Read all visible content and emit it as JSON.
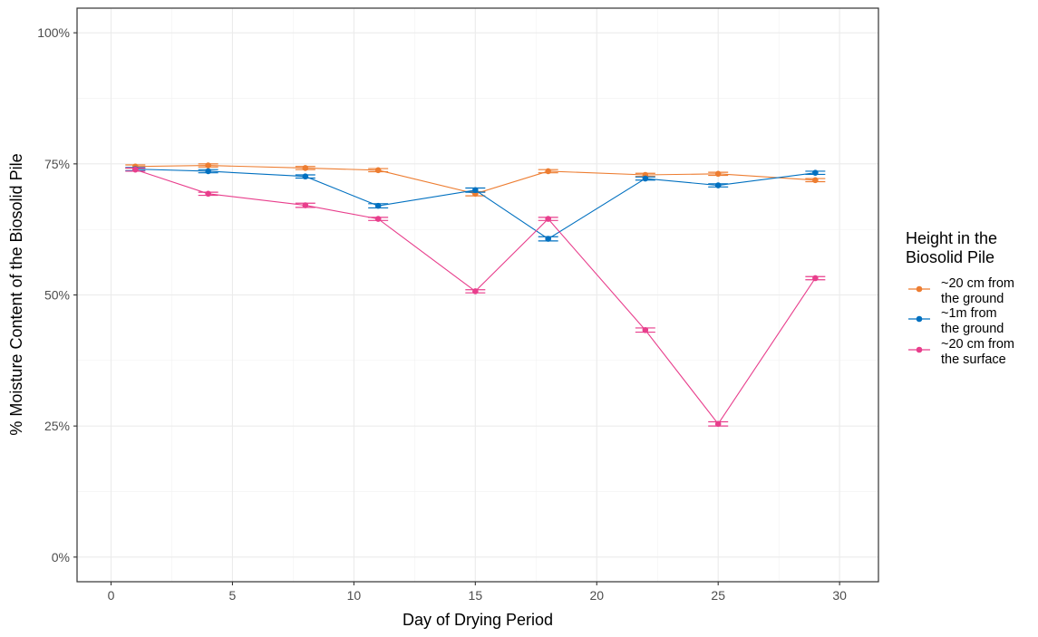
{
  "chart_data": {
    "type": "line",
    "xlabel": "Day of Drying Period",
    "ylabel": "% Moisture Content of the Biosolid Pile",
    "xlim": [
      -1.4,
      31.6
    ],
    "ylim": [
      -0.047,
      1.047
    ],
    "x_ticks": [
      0,
      5,
      10,
      15,
      20,
      25,
      30
    ],
    "x_tick_labels": [
      "0",
      "5",
      "10",
      "15",
      "20",
      "25",
      "30"
    ],
    "y_ticks": [
      0,
      0.25,
      0.5,
      0.75,
      1.0
    ],
    "y_tick_labels": [
      "0%",
      "25%",
      "50%",
      "75%",
      "100%"
    ],
    "grid": true,
    "legend": {
      "title": [
        "Height in the",
        "Biosolid Pile"
      ],
      "position": "right"
    },
    "x": [
      1,
      4,
      8,
      11,
      15,
      18,
      22,
      25,
      29
    ],
    "series": [
      {
        "name": [
          "~20 cm from",
          "the ground"
        ],
        "color": "#ED7D31",
        "values": [
          0.745,
          0.747,
          0.742,
          0.738,
          0.693,
          0.736,
          0.729,
          0.731,
          0.719
        ],
        "error": [
          0.003,
          0.003,
          0.003,
          0.003,
          0.004,
          0.003,
          0.003,
          0.003,
          0.003
        ]
      },
      {
        "name": [
          "~1m from",
          "the ground"
        ],
        "color": "#0070C0",
        "values": [
          0.74,
          0.736,
          0.726,
          0.67,
          0.7,
          0.607,
          0.722,
          0.709,
          0.733
        ],
        "error": [
          0.003,
          0.003,
          0.003,
          0.004,
          0.004,
          0.004,
          0.003,
          0.003,
          0.003
        ]
      },
      {
        "name": [
          "~20 cm from",
          "the surface"
        ],
        "color": "#E83E8C",
        "values": [
          0.739,
          0.693,
          0.671,
          0.645,
          0.507,
          0.645,
          0.433,
          0.254,
          0.532
        ],
        "error": [
          0.003,
          0.003,
          0.004,
          0.003,
          0.003,
          0.003,
          0.004,
          0.004,
          0.003
        ]
      }
    ]
  }
}
